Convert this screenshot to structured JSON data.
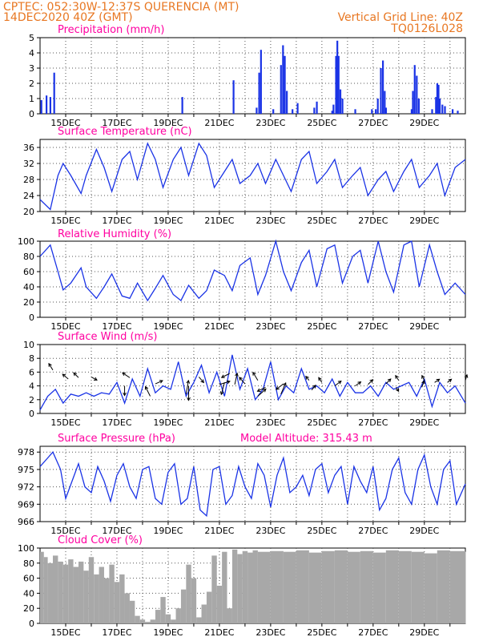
{
  "header": {
    "line1_left": "CPTEC:   052:30W-12:37S   QUERENCIA (MT)",
    "line2_left": "14DEC2020 40Z (GMT)",
    "line2_right": "Vertical Grid Line: 40Z",
    "line3_right": "TQ0126L028",
    "color": "#e87722"
  },
  "colors": {
    "title": "#ff00a0",
    "line": "#1a33e6",
    "bar": "#1a33e6",
    "cloud": "#a8a8a8",
    "grid": "#555555"
  },
  "date_ticks": [
    "15DEC",
    "17DEC",
    "19DEC",
    "21DEC",
    "23DEC",
    "25DEC",
    "27DEC",
    "29DEC"
  ],
  "chart_data": [
    {
      "type": "bar",
      "title": "Precipitation (mm/h)",
      "ylim": [
        0,
        5
      ],
      "yticks": [
        "0",
        "1",
        "2",
        "3",
        "4",
        "5"
      ],
      "x_unit": "days after 14DEC2020",
      "bars": [
        [
          0.05,
          0.9
        ],
        [
          0.25,
          1.2
        ],
        [
          0.4,
          1.1
        ],
        [
          0.55,
          2.7
        ],
        [
          5.55,
          1.1
        ],
        [
          7.55,
          2.2
        ],
        [
          8.45,
          0.4
        ],
        [
          8.55,
          2.7
        ],
        [
          8.62,
          4.2
        ],
        [
          9.1,
          0.3
        ],
        [
          9.4,
          3.2
        ],
        [
          9.48,
          4.5
        ],
        [
          9.55,
          3.8
        ],
        [
          9.63,
          1.5
        ],
        [
          9.85,
          0.3
        ],
        [
          10.05,
          0.7
        ],
        [
          10.7,
          0.4
        ],
        [
          10.8,
          0.8
        ],
        [
          11.4,
          0.2
        ],
        [
          11.45,
          0.6
        ],
        [
          11.55,
          3.8
        ],
        [
          11.6,
          4.8
        ],
        [
          11.65,
          3.8
        ],
        [
          11.72,
          1.6
        ],
        [
          11.8,
          1.0
        ],
        [
          12.3,
          0.3
        ],
        [
          12.95,
          0.3
        ],
        [
          13.1,
          0.3
        ],
        [
          13.18,
          1.0
        ],
        [
          13.3,
          3.0
        ],
        [
          13.38,
          3.5
        ],
        [
          13.45,
          1.5
        ],
        [
          13.5,
          0.4
        ],
        [
          14.5,
          0.3
        ],
        [
          14.55,
          1.5
        ],
        [
          14.62,
          3.2
        ],
        [
          14.7,
          2.5
        ],
        [
          14.78,
          1.0
        ],
        [
          15.3,
          0.3
        ],
        [
          15.45,
          1.1
        ],
        [
          15.5,
          2.0
        ],
        [
          15.55,
          1.9
        ],
        [
          15.6,
          1.0
        ],
        [
          15.7,
          0.6
        ]
      ],
      "bars_late": [
        [
          15.8,
          0.5
        ],
        [
          16.1,
          0.3
        ],
        [
          16.3,
          0.2
        ]
      ]
    },
    {
      "type": "line",
      "title": "Surface Temperature (nC)",
      "ylim": [
        20,
        38
      ],
      "yticks": [
        "20",
        "24",
        "28",
        "32",
        "36"
      ],
      "x": [
        0,
        0.4,
        0.7,
        0.9,
        1.2,
        1.6,
        1.8,
        2.2,
        2.5,
        2.8,
        3.2,
        3.5,
        3.8,
        4.2,
        4.5,
        4.8,
        5.2,
        5.5,
        5.8,
        6.2,
        6.5,
        6.8,
        7.2,
        7.5,
        7.8,
        8.2,
        8.5,
        8.8,
        9.2,
        9.5,
        9.8,
        10.2,
        10.5,
        10.8,
        11.2,
        11.5,
        11.8,
        12.2,
        12.5,
        12.8,
        13.2,
        13.5,
        13.8,
        14.2,
        14.5,
        14.8,
        15.2,
        15.5,
        15.8,
        16.2,
        16.6
      ],
      "y": [
        23,
        20.5,
        29,
        32,
        29,
        24.5,
        29,
        35.5,
        31,
        25,
        33,
        35,
        28,
        37,
        33,
        26,
        33,
        36,
        29,
        37,
        34,
        26,
        30,
        33,
        27,
        29,
        32,
        27,
        33,
        29,
        25,
        33,
        35,
        27,
        30,
        33,
        26,
        29,
        31,
        24,
        28,
        30,
        25,
        30,
        33,
        26,
        29,
        32,
        24,
        31,
        33
      ]
    },
    {
      "type": "line",
      "title": "Relative Humidity (%)",
      "ylim": [
        0,
        100
      ],
      "yticks": [
        "0",
        "20",
        "40",
        "60",
        "80",
        "100"
      ],
      "x": [
        0,
        0.4,
        0.7,
        0.9,
        1.2,
        1.6,
        1.8,
        2.2,
        2.5,
        2.8,
        3.2,
        3.5,
        3.8,
        4.2,
        4.5,
        4.8,
        5.2,
        5.5,
        5.8,
        6.2,
        6.5,
        6.8,
        7.2,
        7.5,
        7.8,
        8.2,
        8.5,
        8.8,
        9.2,
        9.5,
        9.8,
        10.2,
        10.5,
        10.8,
        11.2,
        11.5,
        11.8,
        12.2,
        12.5,
        12.8,
        13.2,
        13.5,
        13.8,
        14.2,
        14.5,
        14.8,
        15.2,
        15.5,
        15.8,
        16.2,
        16.6
      ],
      "y": [
        80,
        95,
        60,
        36,
        45,
        65,
        40,
        25,
        40,
        57,
        28,
        25,
        45,
        22,
        38,
        55,
        30,
        22,
        42,
        25,
        35,
        62,
        55,
        35,
        68,
        78,
        30,
        55,
        100,
        60,
        35,
        72,
        88,
        40,
        90,
        95,
        45,
        80,
        88,
        45,
        100,
        60,
        33,
        95,
        100,
        40,
        95,
        60,
        30,
        45,
        30
      ]
    },
    {
      "type": "line",
      "title": "Surface Wind (m/s)",
      "ylim": [
        0,
        10
      ],
      "yticks": [
        "0",
        "2",
        "4",
        "6",
        "8",
        "10"
      ],
      "x": [
        0,
        0.3,
        0.6,
        0.9,
        1.2,
        1.5,
        1.8,
        2.1,
        2.4,
        2.7,
        3.0,
        3.3,
        3.6,
        3.9,
        4.2,
        4.5,
        4.8,
        5.1,
        5.4,
        5.7,
        6.0,
        6.3,
        6.6,
        6.9,
        7.2,
        7.5,
        7.8,
        8.1,
        8.4,
        8.7,
        9.0,
        9.3,
        9.6,
        9.9,
        10.2,
        10.5,
        10.8,
        11.1,
        11.4,
        11.7,
        12.0,
        12.3,
        12.6,
        12.9,
        13.2,
        13.5,
        13.8,
        14.1,
        14.4,
        14.7,
        15.0,
        15.3,
        15.6,
        15.9,
        16.2,
        16.6
      ],
      "y": [
        0.5,
        2.5,
        3.5,
        1.5,
        2.8,
        2.5,
        3.0,
        2.5,
        3.0,
        2.8,
        4.5,
        1.5,
        5.0,
        2.5,
        6.5,
        3.0,
        4.0,
        3.5,
        7.5,
        2.5,
        4.5,
        7.0,
        3.0,
        6.0,
        2.5,
        8.5,
        3.5,
        6.5,
        2.0,
        3.5,
        7.5,
        2.0,
        4.0,
        3.0,
        6.5,
        3.5,
        4.0,
        3.0,
        5.0,
        2.5,
        4.5,
        3.0,
        3.0,
        4.0,
        2.5,
        4.5,
        3.5,
        4.0,
        4.5,
        2.5,
        5.0,
        1.0,
        4.5,
        3.0,
        4.0,
        1.5
      ],
      "arrows": [
        [
          0.5,
          6.3,
          -0.5,
          0.8
        ],
        [
          1.1,
          5.0,
          -0.7,
          0.6
        ],
        [
          1.5,
          5.2,
          -0.6,
          0.6
        ],
        [
          2.0,
          5.3,
          0.7,
          -0.4
        ],
        [
          3.3,
          4.0,
          0,
          -1.2
        ],
        [
          3.5,
          5.2,
          -0.9,
          0.6
        ],
        [
          4.3,
          2.5,
          -0.6,
          1.2
        ],
        [
          4.5,
          4.3,
          0.9,
          0.4
        ],
        [
          5.7,
          2.8,
          0.3,
          1.7
        ],
        [
          5.8,
          4.0,
          0,
          -1.8
        ],
        [
          6.2,
          5.3,
          0.6,
          -0.7
        ],
        [
          7.0,
          4.2,
          1.3,
          0.4
        ],
        [
          7.2,
          4.5,
          -0.4,
          -1.5
        ],
        [
          7.4,
          5.8,
          -1.0,
          -0.5
        ],
        [
          7.6,
          4.2,
          0.3,
          1.4
        ],
        [
          8.0,
          4.3,
          -0.7,
          0.8
        ],
        [
          8.5,
          2.5,
          1.0,
          0.9
        ],
        [
          8.5,
          4.8,
          -0.6,
          1.0
        ],
        [
          8.8,
          3.8,
          -1.0,
          -0.5
        ],
        [
          9.4,
          2.8,
          0.6,
          1.4
        ],
        [
          9.5,
          4.3,
          -0.9,
          -0.7
        ],
        [
          10.5,
          4.8,
          -0.4,
          0.5
        ],
        [
          10.6,
          3.4,
          0.5,
          0.6
        ],
        [
          11.0,
          4.5,
          -0.4,
          0.6
        ],
        [
          11.5,
          4.0,
          0.8,
          0.6
        ],
        [
          12.3,
          4.0,
          0.7,
          0.5
        ],
        [
          12.8,
          4.2,
          0.6,
          0.6
        ],
        [
          13.5,
          4.3,
          0.6,
          0.6
        ],
        [
          13.9,
          3.8,
          0.3,
          -0.5
        ],
        [
          14.0,
          4.8,
          -0.4,
          0.6
        ],
        [
          14.9,
          3.8,
          0.3,
          0.8
        ],
        [
          15.0,
          4.8,
          -0.3,
          0.6
        ],
        [
          15.4,
          4.5,
          0.6,
          0.4
        ],
        [
          15.9,
          4.5,
          0.5,
          0.4
        ],
        [
          16.6,
          4.8,
          0.2,
          0.7
        ]
      ]
    },
    {
      "type": "line",
      "title": "Surface Pressure (hPa)",
      "annotation": "Model Altitude: 315.43 m",
      "ylim": [
        966,
        979
      ],
      "yticks": [
        "966",
        "969",
        "972",
        "975",
        "978"
      ],
      "x": [
        0,
        0.3,
        0.5,
        0.8,
        1.0,
        1.25,
        1.5,
        1.75,
        2.0,
        2.25,
        2.5,
        2.75,
        3.0,
        3.25,
        3.5,
        3.75,
        4.0,
        4.25,
        4.5,
        4.75,
        5.0,
        5.25,
        5.5,
        5.75,
        6.0,
        6.25,
        6.5,
        6.75,
        7.0,
        7.25,
        7.5,
        7.75,
        8.0,
        8.25,
        8.5,
        8.75,
        9.0,
        9.25,
        9.5,
        9.75,
        10.0,
        10.25,
        10.5,
        10.75,
        11.0,
        11.25,
        11.5,
        11.75,
        12.0,
        12.25,
        12.5,
        12.75,
        13.0,
        13.25,
        13.5,
        13.75,
        14.0,
        14.25,
        14.5,
        14.75,
        15.0,
        15.25,
        15.5,
        15.75,
        16.0,
        16.25,
        16.6
      ],
      "y": [
        975.5,
        977,
        978,
        975,
        970,
        973,
        976,
        972,
        971,
        975.5,
        973,
        969.5,
        974,
        976,
        972,
        970,
        975,
        975.5,
        970,
        969,
        974.5,
        976,
        969,
        970,
        975.5,
        968,
        967,
        975,
        975.5,
        969,
        970.5,
        975.5,
        972,
        970,
        976,
        974,
        968.5,
        974,
        977,
        971,
        972,
        974,
        970.5,
        975,
        976,
        971,
        974,
        975.5,
        969,
        975.5,
        973,
        971,
        975.5,
        968,
        970,
        975,
        977,
        971,
        969,
        975,
        977.5,
        972,
        969,
        975,
        976.5,
        969,
        972.5
      ]
    },
    {
      "type": "area",
      "title": "Cloud Cover (%)",
      "ylim": [
        0,
        100
      ],
      "yticks": [
        "0",
        "20",
        "40",
        "60",
        "80",
        "100"
      ],
      "x": [
        0,
        0.15,
        0.3,
        0.5,
        0.7,
        0.9,
        1.1,
        1.3,
        1.5,
        1.7,
        1.9,
        2.1,
        2.3,
        2.5,
        2.7,
        2.9,
        3.1,
        3.3,
        3.5,
        3.7,
        3.9,
        4.1,
        4.3,
        4.5,
        4.7,
        4.9,
        5.1,
        5.3,
        5.5,
        5.7,
        5.9,
        6.1,
        6.3,
        6.5,
        6.7,
        6.9,
        7.1,
        7.3,
        7.5,
        7.7,
        7.9,
        8.1,
        8.3,
        8.5,
        9.0,
        9.5,
        10.0,
        10.5,
        11.0,
        11.5,
        12.0,
        12.5,
        13.0,
        13.5,
        14.0,
        14.5,
        15.0,
        15.5,
        16.0,
        16.6
      ],
      "y": [
        95,
        88,
        80,
        90,
        82,
        78,
        85,
        75,
        82,
        70,
        88,
        65,
        75,
        60,
        78,
        55,
        65,
        40,
        30,
        10,
        5,
        2,
        5,
        18,
        35,
        12,
        5,
        20,
        45,
        78,
        60,
        8,
        25,
        42,
        90,
        50,
        95,
        20,
        98,
        92,
        96,
        94,
        97,
        95,
        96,
        95,
        97,
        94,
        96,
        97,
        95,
        96,
        94,
        97,
        96,
        95,
        93,
        97,
        96,
        95
      ]
    }
  ]
}
